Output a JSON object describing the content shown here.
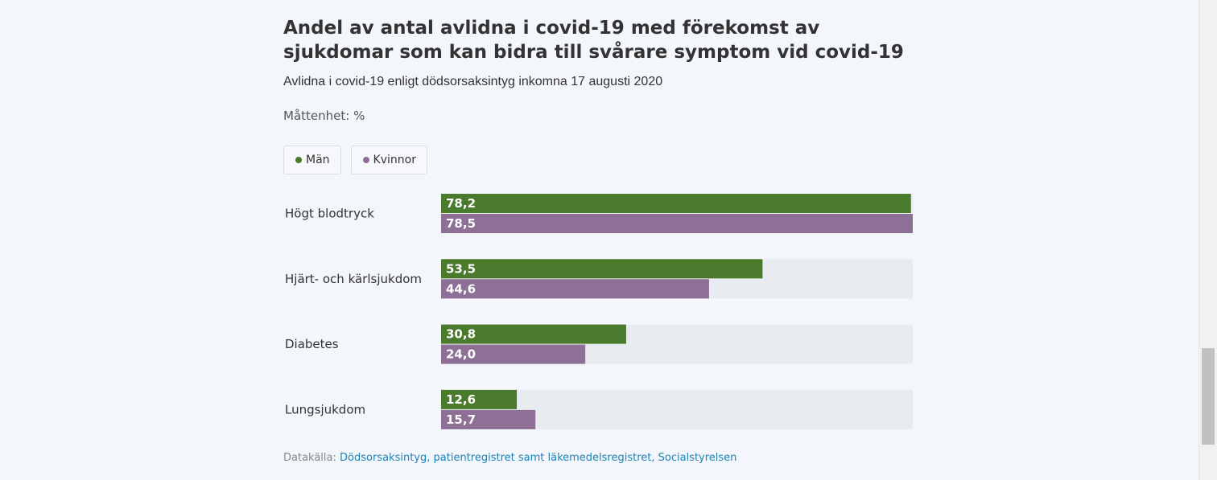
{
  "title": "Andel av antal avlidna i covid-19 med förekomst av sjukdomar som kan bidra till svårare symptom vid covid-19",
  "subtitle": "Avlidna i covid-19 enligt dödsorsaksintyg inkomna 17 augusti 2020",
  "unit": "Måttenhet: %",
  "legend": [
    {
      "name": "Män",
      "color": "#4a7a2c"
    },
    {
      "name": "Kvinnor",
      "color": "#8e6f96"
    }
  ],
  "source": {
    "label": "Datakälla:",
    "text": "Dödsorsaksintyg, patientregistret samt läkemedelsregistret, Socialstyrelsen"
  },
  "chart_data": {
    "type": "bar",
    "orientation": "horizontal",
    "categories": [
      "Högt blodtryck",
      "Hjärt- och kärlsjukdom",
      "Diabetes",
      "Lungsjukdom"
    ],
    "series": [
      {
        "name": "Män",
        "color": "#4a7a2c",
        "values": [
          78.2,
          53.5,
          30.8,
          12.6
        ],
        "labels": [
          "78,2",
          "53,5",
          "30,8",
          "12,6"
        ]
      },
      {
        "name": "Kvinnor",
        "color": "#8e6f96",
        "values": [
          78.5,
          44.6,
          24.0,
          15.7
        ],
        "labels": [
          "78,5",
          "44,6",
          "24,0",
          "15,7"
        ]
      }
    ],
    "xlim": [
      0,
      78.5
    ],
    "track_color": "#e8ebef",
    "legend_position": "top-left",
    "grid": false
  }
}
